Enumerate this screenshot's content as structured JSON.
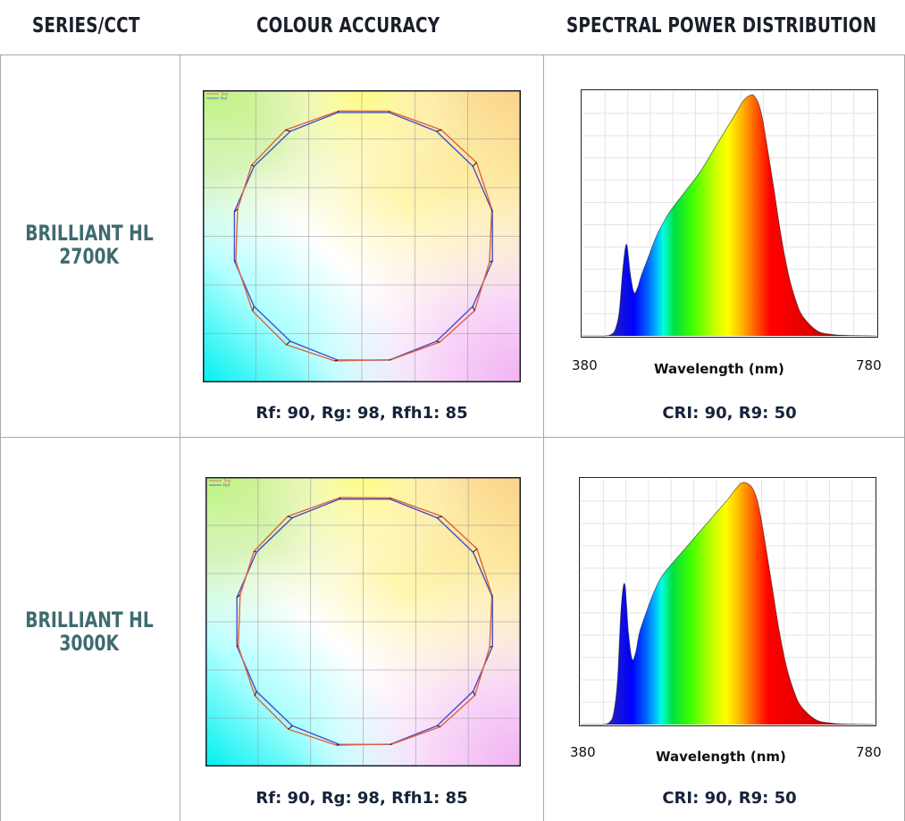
{
  "headers": {
    "series": "SERIES/CCT",
    "colour": "COLOUR ACCURACY",
    "spectral": "SPECTRAL POWER DISTRIBUTION"
  },
  "colors": {
    "header_text": "#1a1e2a",
    "label_text": "#3f6b70",
    "caption_text": "#16223a",
    "test_line": "#e0623c",
    "ref_line": "#4650c8"
  },
  "rows": [
    {
      "label_line1": "BRILLIANT HL",
      "label_line2": "2700K",
      "colour_caption": "Rf: 90, Rg: 98, Rfh1: 85",
      "spd_caption": "CRI: 90, R9: 50",
      "legend": [
        "Test",
        "Ref"
      ],
      "chart_data": {
        "type": "area",
        "xlabel": "Wavelength (nm)",
        "xlim": [
          380,
          780
        ],
        "x_tick_labels": [
          "380",
          "780"
        ],
        "ylim": [
          0,
          1
        ],
        "grid": true,
        "x": [
          380,
          410,
          420,
          425,
          430,
          435,
          440,
          445,
          450,
          455,
          460,
          470,
          480,
          490,
          500,
          520,
          540,
          560,
          580,
          590,
          600,
          610,
          615,
          620,
          625,
          630,
          640,
          650,
          660,
          670,
          680,
          700,
          720,
          740,
          760,
          780
        ],
        "y": [
          0,
          0,
          0.008,
          0.03,
          0.1,
          0.28,
          0.38,
          0.26,
          0.18,
          0.2,
          0.25,
          0.33,
          0.41,
          0.47,
          0.52,
          0.6,
          0.68,
          0.78,
          0.88,
          0.93,
          0.98,
          1.0,
          0.99,
          0.96,
          0.9,
          0.81,
          0.62,
          0.42,
          0.26,
          0.15,
          0.08,
          0.02,
          0.006,
          0.002,
          0.001,
          0
        ]
      }
    },
    {
      "label_line1": "BRILLIANT HL",
      "label_line2": "3000K",
      "colour_caption": "Rf: 90, Rg: 98, Rfh1: 85",
      "spd_caption": "CRI: 90, R9: 50",
      "legend": [
        "Test",
        "Ref"
      ],
      "chart_data": {
        "type": "area",
        "xlabel": "Wavelength (nm)",
        "xlim": [
          380,
          780
        ],
        "x_tick_labels": [
          "380",
          "780"
        ],
        "ylim": [
          0,
          1
        ],
        "grid": true,
        "x": [
          380,
          410,
          420,
          425,
          430,
          435,
          440,
          445,
          450,
          455,
          460,
          470,
          480,
          490,
          500,
          520,
          540,
          560,
          580,
          590,
          600,
          610,
          615,
          620,
          625,
          630,
          640,
          650,
          660,
          670,
          680,
          700,
          720,
          740,
          760,
          780
        ],
        "y": [
          0,
          0,
          0.012,
          0.05,
          0.18,
          0.48,
          0.58,
          0.38,
          0.27,
          0.3,
          0.38,
          0.47,
          0.55,
          0.61,
          0.65,
          0.72,
          0.79,
          0.86,
          0.93,
          0.97,
          1.0,
          0.99,
          0.97,
          0.93,
          0.86,
          0.77,
          0.58,
          0.39,
          0.24,
          0.14,
          0.075,
          0.02,
          0.006,
          0.002,
          0.001,
          0
        ]
      }
    }
  ]
}
